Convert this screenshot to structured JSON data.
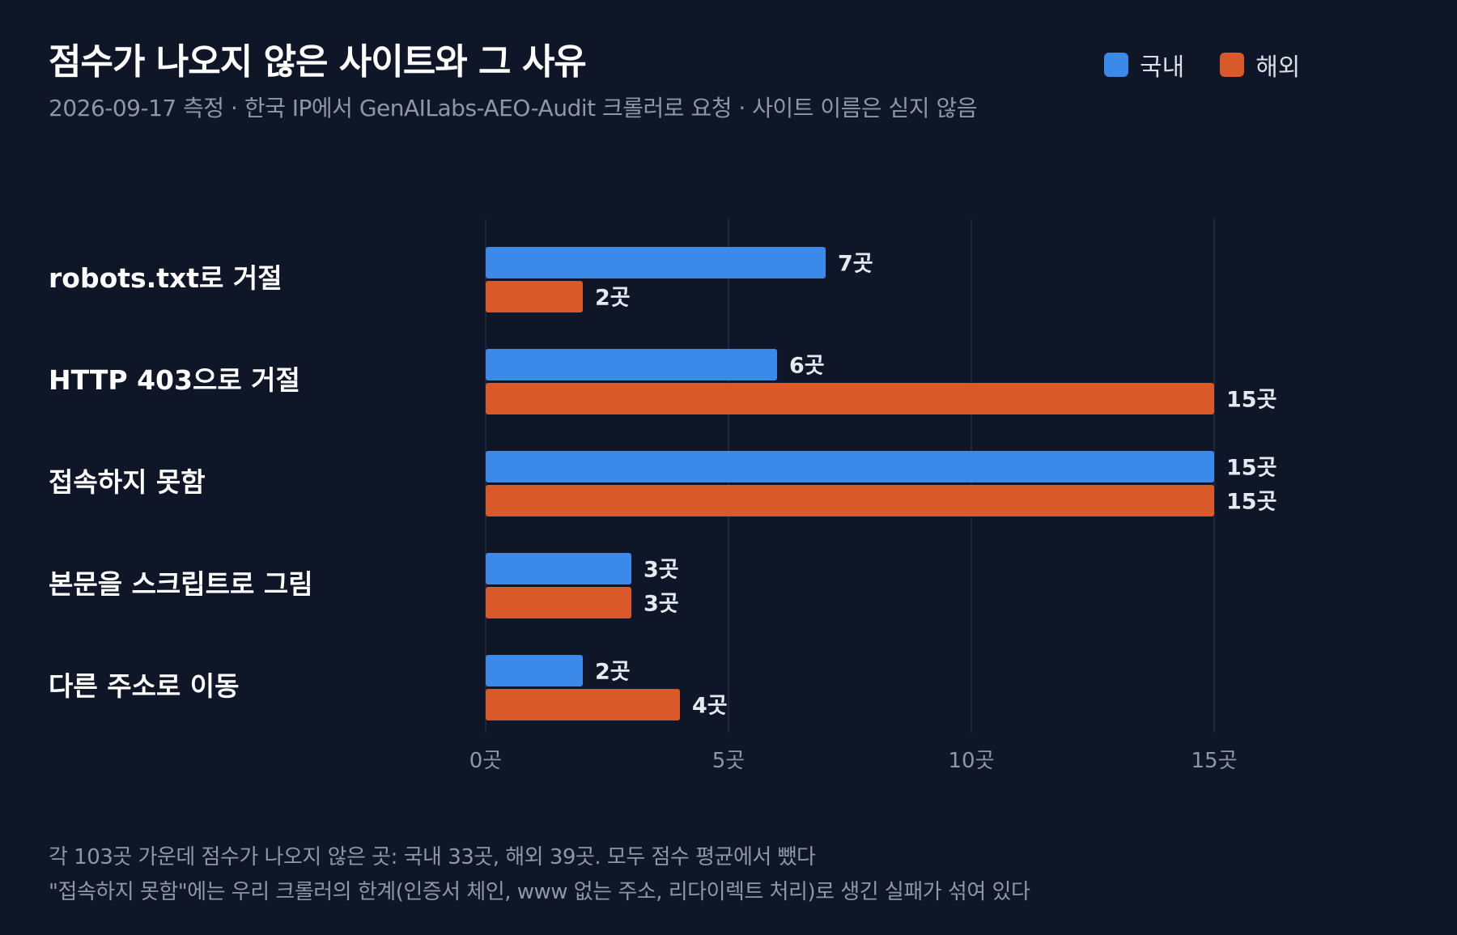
{
  "chart_data": {
    "type": "bar",
    "orientation": "horizontal",
    "title": "점수가 나오지 않은 사이트와 그 사유",
    "subtitle": "2026-09-17 측정 · 한국 IP에서 GenAILabs-AEO-Audit 크롤러로 요청 · 사이트 이름은 싣지 않음",
    "categories": [
      "robots.txt로 거절",
      "HTTP 403으로 거절",
      "접속하지 못함",
      "본문을 스크립트로 그림",
      "다른 주소로 이동"
    ],
    "series": [
      {
        "name": "국내",
        "color": "#3b89e8",
        "values": [
          7,
          6,
          15,
          3,
          2
        ]
      },
      {
        "name": "해외",
        "color": "#d95a28",
        "values": [
          2,
          15,
          15,
          3,
          4
        ]
      }
    ],
    "value_unit": "곳",
    "xlim": [
      0,
      15
    ],
    "x_ticks": [
      0,
      5,
      10,
      15
    ],
    "x_tick_labels": [
      "0곳",
      "5곳",
      "10곳",
      "15곳"
    ],
    "grid": true,
    "legend_position": "top-right"
  },
  "footnotes": [
    "각 103곳 가운데 점수가 나오지 않은 곳: 국내 33곳, 해외 39곳. 모두 점수 평균에서 뺐다",
    "\"접속하지 못함\"에는 우리 크롤러의 한계(인증서 체인, www 없는 주소, 리다이렉트 처리)로 생긴 실패가 섞여 있다"
  ]
}
